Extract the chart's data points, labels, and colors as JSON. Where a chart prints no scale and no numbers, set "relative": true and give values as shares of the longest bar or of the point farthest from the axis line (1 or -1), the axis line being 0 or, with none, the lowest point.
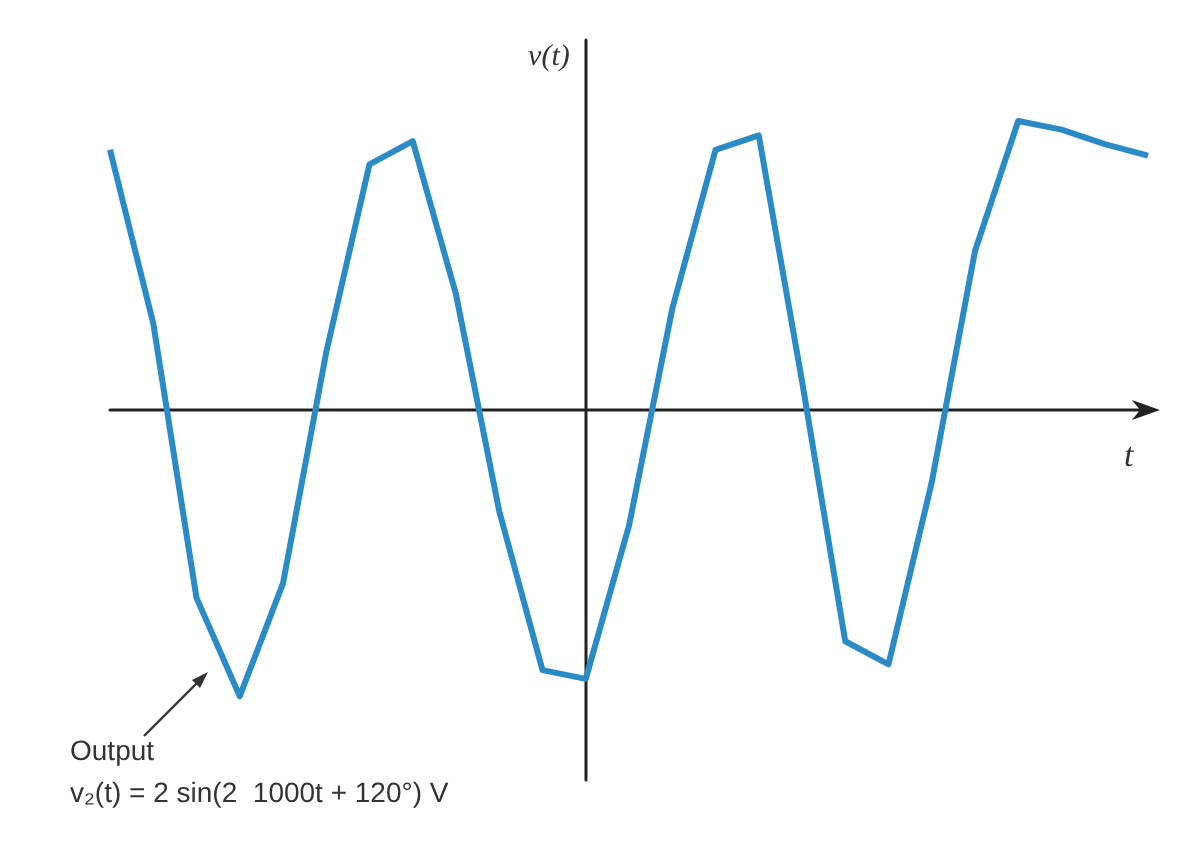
{
  "chart_data": {
    "type": "line",
    "relative": true,
    "xlabel": "t",
    "ylabel": "v(t)",
    "marker": "none",
    "categories": [
      null,
      null,
      null,
      null,
      null,
      null,
      null,
      null,
      null,
      null,
      null,
      null,
      null,
      null,
      null,
      null,
      null,
      null,
      null,
      null,
      null,
      null,
      null,
      null,
      null
    ],
    "series": [
      {
        "color": "#2b8bc6",
        "values": [
          0.9,
          0.3,
          -0.65,
          -0.99,
          -0.6,
          0.2,
          0.85,
          0.93,
          0.4,
          -0.35,
          -0.9,
          -0.93,
          -0.4,
          0.35,
          0.9,
          0.95,
          0.1,
          -0.8,
          -0.88,
          -0.25,
          0.55,
          1,
          0.97,
          0.92,
          0.88
        ]
      }
    ],
    "annotations": [
      "Output",
      "v₂(t) = 2 sin(2  1000t + 120°) V"
    ]
  }
}
